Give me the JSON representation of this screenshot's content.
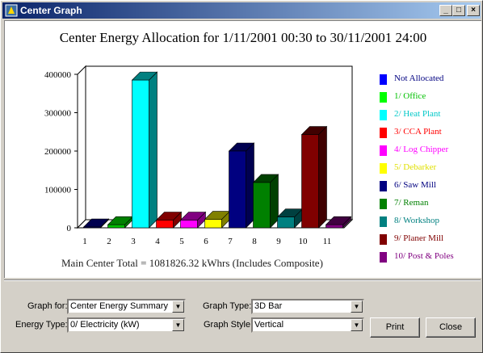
{
  "window": {
    "title": "Center Graph",
    "min_glyph": "_",
    "max_glyph": "□",
    "close_glyph": "×"
  },
  "chart_data": {
    "type": "bar",
    "title": "Center Energy Allocation for 1/11/2001 00:30 to 30/11/2001 24:00",
    "categories": [
      "1",
      "2",
      "3",
      "4",
      "5",
      "6",
      "7",
      "8",
      "9",
      "10",
      "11"
    ],
    "series": [
      {
        "name": "Not Allocated",
        "color": "#000080",
        "values": [
          0,
          0,
          0,
          0,
          0,
          0,
          0,
          0,
          0,
          0,
          0
        ]
      }
    ],
    "values": [
      2000,
      8000,
      385000,
      20000,
      20000,
      22000,
      200000,
      118000,
      28000,
      243000,
      8000
    ],
    "bar_colors": [
      "#000080",
      "#00c000",
      "#00ffff",
      "#ff0000",
      "#ff00ff",
      "#ffff00",
      "#000080",
      "#008000",
      "#008080",
      "#800000",
      "#800080"
    ],
    "side_colors": [
      "#000050",
      "#008000",
      "#008080",
      "#800000",
      "#800080",
      "#808000",
      "#000050",
      "#004000",
      "#004040",
      "#400000",
      "#400040"
    ],
    "yticks": [
      "0",
      "100000",
      "200000",
      "300000",
      "400000"
    ],
    "ylim": [
      0,
      400000
    ],
    "xlabel": "",
    "ylabel": "",
    "footer": "Main Center Total = 1081826.32 kWhrs (Includes Composite)"
  },
  "legend": [
    {
      "label": "Not Allocated",
      "color": "#0000ff",
      "text_color": "#000080"
    },
    {
      "label": "1/ Office",
      "color": "#00ff00",
      "text_color": "#00c000"
    },
    {
      "label": "2/ Heat Plant",
      "color": "#00ffff",
      "text_color": "#00c8c8"
    },
    {
      "label": "3/ CCA Plant",
      "color": "#ff0000",
      "text_color": "#ff0000"
    },
    {
      "label": "4/ Log Chipper",
      "color": "#ff00ff",
      "text_color": "#ff00ff"
    },
    {
      "label": "5/ Debarker",
      "color": "#ffff00",
      "text_color": "#e0e000"
    },
    {
      "label": "6/ Saw Mill",
      "color": "#000080",
      "text_color": "#000080"
    },
    {
      "label": "7/ Reman",
      "color": "#008000",
      "text_color": "#008000"
    },
    {
      "label": "8/ Workshop",
      "color": "#008080",
      "text_color": "#008080"
    },
    {
      "label": "9/ Planer Mill",
      "color": "#800000",
      "text_color": "#800000"
    },
    {
      "label": "10/ Post & Poles",
      "color": "#800080",
      "text_color": "#800080"
    }
  ],
  "controls": {
    "graph_for_label": "Graph for:",
    "graph_for_value": "Center Energy Summary",
    "energy_type_label": "Energy Type:",
    "energy_type_value": "0/ Electricity (kW)",
    "graph_type_label": "Graph Type:",
    "graph_type_value": "3D Bar",
    "graph_style_label": "Graph Style:",
    "graph_style_value": "Vertical",
    "dropdown_arrow": "▼",
    "print_label": "Print",
    "close_label": "Close"
  }
}
